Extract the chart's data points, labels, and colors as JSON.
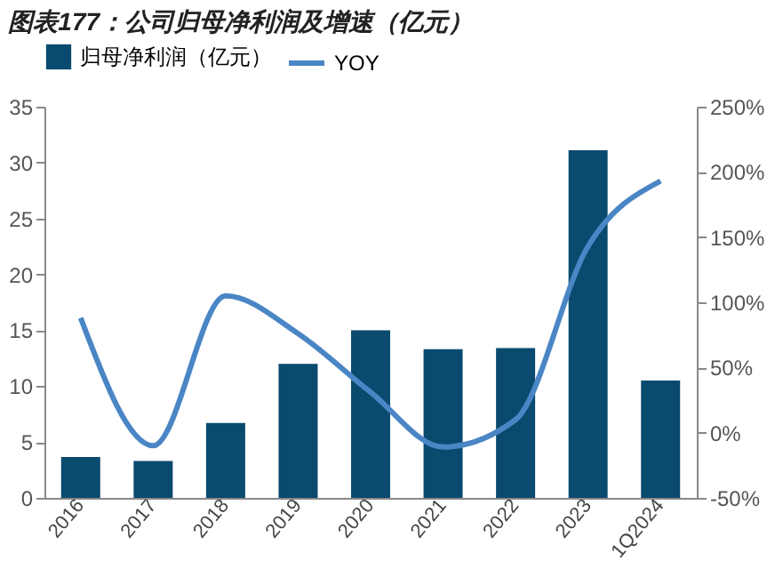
{
  "chart_data": {
    "type": "bar",
    "title": "图表177：公司归母净利润及增速（亿元）",
    "categories": [
      "2016",
      "2017",
      "2018",
      "2019",
      "2020",
      "2021",
      "2022",
      "2023",
      "1Q2024"
    ],
    "series": [
      {
        "name": "归母净利润（亿元）",
        "color": "#0b4a6f",
        "values": [
          3.65,
          3.3,
          6.7,
          12.0,
          15.0,
          13.3,
          13.4,
          31.1,
          10.5
        ]
      },
      {
        "name": "YOY",
        "type": "line",
        "axis": "y2",
        "color": "#4a86c5",
        "values": [
          88,
          -10,
          105,
          76,
          31,
          -11,
          10,
          143,
          193
        ]
      }
    ],
    "ylim": [
      0,
      35
    ],
    "yticks": [
      0,
      5,
      10,
      15,
      20,
      25,
      30,
      35
    ],
    "y2lim": [
      -50,
      250
    ],
    "y2ticks": [
      {
        "value": -50,
        "label": "-50%"
      },
      {
        "value": 0,
        "label": "0%"
      },
      {
        "value": 50,
        "label": "50%"
      },
      {
        "value": 100,
        "label": "100%"
      },
      {
        "value": 150,
        "label": "150%"
      },
      {
        "value": 200,
        "label": "200%"
      },
      {
        "value": 250,
        "label": "250%"
      }
    ],
    "legend": "top",
    "grid": false
  }
}
